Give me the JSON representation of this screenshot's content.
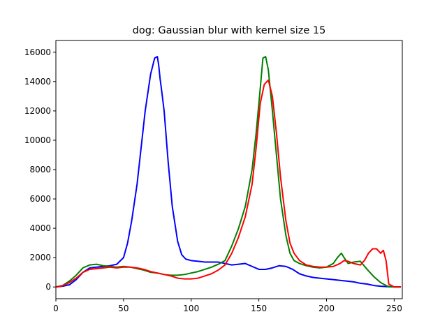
{
  "chart_data": {
    "type": "line",
    "title": "dog: Gaussian blur with kernel size 15",
    "xlabel": "",
    "ylabel": "",
    "xlim": [
      0,
      256
    ],
    "ylim": [
      -800,
      16800
    ],
    "grid": false,
    "legend": "none",
    "xticks": [
      0,
      50,
      100,
      150,
      200,
      250
    ],
    "yticks": [
      0,
      2000,
      4000,
      6000,
      8000,
      10000,
      12000,
      14000,
      16000
    ],
    "series": [
      {
        "color": "#0000ff",
        "x": [
          0,
          5,
          10,
          15,
          20,
          25,
          30,
          35,
          40,
          45,
          50,
          53,
          56,
          60,
          63,
          66,
          70,
          73,
          75,
          76,
          77,
          78,
          80,
          83,
          86,
          90,
          93,
          96,
          100,
          105,
          110,
          115,
          120,
          125,
          130,
          135,
          140,
          145,
          150,
          155,
          160,
          165,
          170,
          175,
          180,
          185,
          190,
          195,
          200,
          205,
          210,
          215,
          220,
          225,
          230,
          235,
          240,
          245,
          250,
          255
        ],
        "y": [
          0,
          50,
          150,
          500,
          1000,
          1300,
          1350,
          1400,
          1450,
          1550,
          2000,
          3000,
          4500,
          7000,
          9500,
          12000,
          14500,
          15600,
          15700,
          15100,
          14200,
          13500,
          12000,
          8500,
          5500,
          3100,
          2200,
          1900,
          1800,
          1750,
          1700,
          1700,
          1700,
          1600,
          1500,
          1550,
          1600,
          1400,
          1200,
          1200,
          1300,
          1450,
          1400,
          1200,
          900,
          750,
          650,
          600,
          550,
          500,
          450,
          400,
          350,
          250,
          200,
          100,
          50,
          20,
          0,
          0
        ]
      },
      {
        "color": "#008000",
        "x": [
          0,
          5,
          10,
          15,
          20,
          25,
          30,
          35,
          40,
          45,
          50,
          55,
          60,
          65,
          70,
          75,
          80,
          85,
          90,
          95,
          100,
          105,
          110,
          115,
          120,
          125,
          130,
          135,
          140,
          145,
          148,
          151,
          153,
          155,
          157,
          160,
          163,
          166,
          170,
          173,
          176,
          180,
          185,
          190,
          195,
          200,
          205,
          208,
          211,
          213,
          216,
          220,
          225,
          230,
          235,
          240,
          245,
          250,
          255
        ],
        "y": [
          0,
          100,
          400,
          800,
          1300,
          1500,
          1550,
          1450,
          1400,
          1350,
          1400,
          1350,
          1250,
          1150,
          1000,
          950,
          850,
          800,
          800,
          850,
          950,
          1050,
          1200,
          1350,
          1550,
          1800,
          2800,
          4000,
          5500,
          8000,
          10500,
          13500,
          15600,
          15700,
          14800,
          12000,
          9000,
          6000,
          3500,
          2300,
          1800,
          1600,
          1450,
          1350,
          1300,
          1350,
          1600,
          2000,
          2300,
          2000,
          1600,
          1700,
          1750,
          1200,
          700,
          300,
          50,
          0,
          0
        ]
      },
      {
        "color": "#ff0000",
        "x": [
          0,
          5,
          10,
          15,
          20,
          25,
          30,
          35,
          40,
          45,
          50,
          55,
          60,
          65,
          70,
          75,
          80,
          85,
          90,
          95,
          100,
          105,
          110,
          115,
          120,
          125,
          130,
          135,
          140,
          145,
          148,
          151,
          154,
          157,
          160,
          163,
          166,
          170,
          173,
          176,
          180,
          185,
          190,
          195,
          200,
          205,
          210,
          213,
          216,
          220,
          225,
          228,
          231,
          234,
          237,
          240,
          242,
          244,
          246,
          250,
          255
        ],
        "y": [
          0,
          80,
          300,
          600,
          1000,
          1200,
          1250,
          1300,
          1350,
          1300,
          1350,
          1350,
          1300,
          1200,
          1050,
          950,
          850,
          750,
          600,
          550,
          550,
          600,
          750,
          900,
          1150,
          1500,
          2300,
          3400,
          4800,
          7000,
          9500,
          12500,
          13800,
          14100,
          13000,
          10500,
          7500,
          4500,
          3000,
          2300,
          1800,
          1500,
          1400,
          1350,
          1350,
          1400,
          1600,
          1800,
          1750,
          1600,
          1500,
          1800,
          2300,
          2600,
          2600,
          2300,
          2500,
          1800,
          200,
          0,
          0
        ]
      }
    ]
  }
}
